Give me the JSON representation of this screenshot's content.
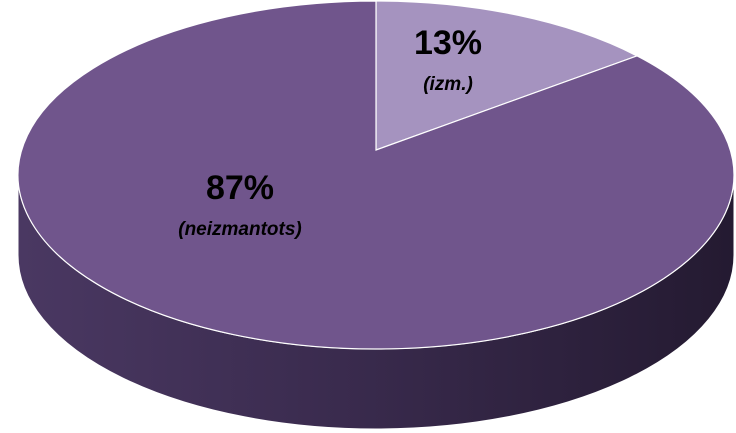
{
  "chart_data": {
    "type": "pie",
    "categories": [
      "(izm.)",
      "(neizmantots)"
    ],
    "values": [
      13,
      87
    ],
    "value_labels": [
      "13%",
      "87%"
    ],
    "colors": [
      "#a593bf",
      "#70558c"
    ]
  }
}
